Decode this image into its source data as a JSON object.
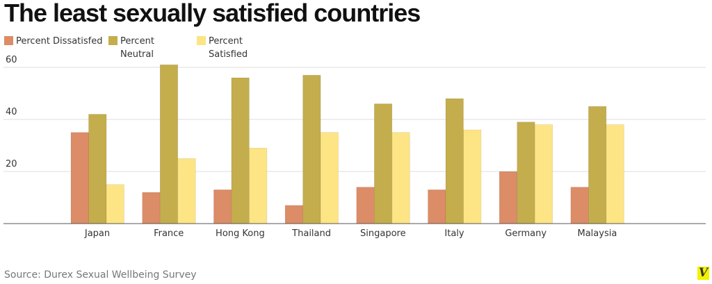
{
  "chart_data": {
    "type": "bar",
    "title": "The least sexually satisfied countries",
    "categories": [
      "Japan",
      "France",
      "Hong Kong",
      "Thailand",
      "Singapore",
      "Italy",
      "Germany",
      "Malaysia"
    ],
    "series": [
      {
        "name": "Percent Dissatisfed",
        "color": "#dc8c66",
        "values": [
          35,
          12,
          13,
          7,
          14,
          13,
          20,
          14
        ]
      },
      {
        "name": "Percent Neutral",
        "color": "#c4ad4c",
        "values": [
          42,
          61,
          56,
          57,
          46,
          48,
          39,
          45
        ]
      },
      {
        "name": "Percent Satisfied",
        "color": "#fde485",
        "values": [
          15,
          25,
          29,
          35,
          35,
          36,
          38,
          38
        ]
      }
    ],
    "yticks": [
      20,
      40,
      60
    ],
    "ylim": [
      0,
      60
    ],
    "grid": true,
    "legend": "top-left",
    "source": "Source: Durex Sexual Wellbeing Survey",
    "logo": "V"
  }
}
